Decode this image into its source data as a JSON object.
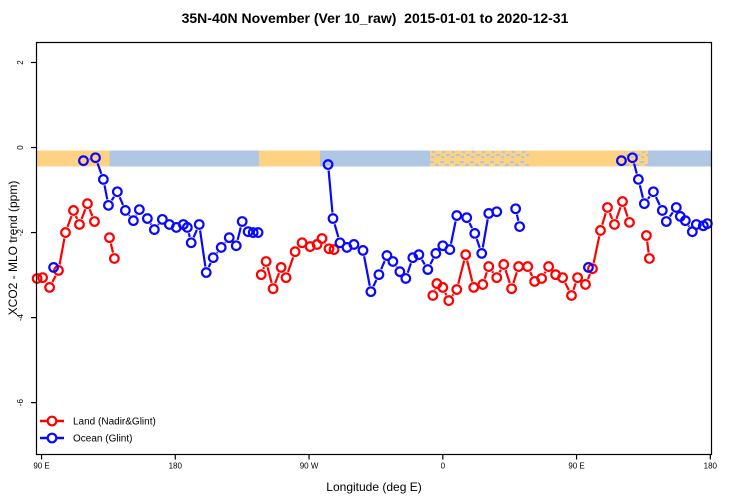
{
  "title": "35N-40N November (Ver 10_raw)  2015-01-01 to 2020-12-31",
  "colors": {
    "land": "#ff0000",
    "ocean": "#0808ff",
    "band_land": "#fdd383",
    "band_ocean": "#afc7e3",
    "axis": "#000000",
    "background": "#ffffff"
  },
  "chart_data": {
    "type": "line",
    "title": "35N-40N November (Ver 10_raw)  2015-01-01 to 2020-12-31",
    "xlabel": "Longitude (deg E)",
    "ylabel": "XCO2 - MLO trend (ppm)",
    "x_axis_note": "axis position in degrees east of 90E, wrapping through 180/-180; span 0..450",
    "xlim": [
      -3.4,
      450.8
    ],
    "ylim": [
      -7.22,
      2.47
    ],
    "x_ticks": [
      {
        "pos": 0,
        "label": "90 E"
      },
      {
        "pos": 90,
        "label": "180"
      },
      {
        "pos": 180,
        "label": "90 W"
      },
      {
        "pos": 270,
        "label": "0"
      },
      {
        "pos": 360,
        "label": "90 E"
      },
      {
        "pos": 450,
        "label": "180"
      }
    ],
    "y_ticks": [
      {
        "value": 2,
        "label": "2"
      },
      {
        "value": 0,
        "label": "0"
      },
      {
        "value": -2,
        "label": "-2"
      },
      {
        "value": -4,
        "label": "-4"
      },
      {
        "value": -6,
        "label": "-6"
      }
    ],
    "legend": [
      {
        "series": "land",
        "label": "Land (Nadir&Glint)"
      },
      {
        "series": "ocean",
        "label": "Ocean (Glint)"
      }
    ],
    "surface_band": {
      "value_top": -0.07,
      "value_bottom": -0.45,
      "segments": [
        {
          "from": -3.4,
          "to": 45.7,
          "surface": "land"
        },
        {
          "from": 45.7,
          "to": 146.4,
          "surface": "ocean"
        },
        {
          "from": 146.4,
          "to": 187.4,
          "surface": "land"
        },
        {
          "from": 187.4,
          "to": 261.3,
          "surface": "ocean"
        },
        {
          "from": 261.3,
          "to": 328.4,
          "surface": "mixed"
        },
        {
          "from": 328.4,
          "to": 392.0,
          "surface": "land"
        },
        {
          "from": 392.0,
          "to": 408.0,
          "surface": "mixed"
        },
        {
          "from": 408.0,
          "to": 450.8,
          "surface": "ocean"
        }
      ]
    },
    "series": [
      {
        "key": "land",
        "name": "Land (Nadir&Glint)",
        "segments": [
          [
            [
              -3.0,
              -3.08
            ],
            [
              0.7,
              -3.06
            ],
            [
              5.4,
              -3.29
            ],
            [
              11.4,
              -2.89
            ],
            [
              16.1,
              -2.0
            ],
            [
              21.5,
              -1.48
            ],
            [
              25.5,
              -1.81
            ],
            [
              30.9,
              -1.32
            ],
            [
              35.6,
              -1.74
            ]
          ],
          [
            [
              45.7,
              -2.12
            ],
            [
              49.0,
              -2.61
            ]
          ],
          [
            [
              147.8,
              -2.99
            ],
            [
              151.1,
              -2.68
            ],
            [
              155.8,
              -3.32
            ],
            [
              161.2,
              -2.82
            ],
            [
              164.5,
              -3.06
            ],
            [
              170.6,
              -2.45
            ],
            [
              175.3,
              -2.24
            ],
            [
              180.7,
              -2.33
            ],
            [
              185.4,
              -2.28
            ],
            [
              188.7,
              -2.14
            ],
            [
              193.4,
              -2.38
            ],
            [
              196.8,
              -2.4
            ]
          ],
          [
            [
              263.3,
              -3.48
            ],
            [
              266.0,
              -3.2
            ],
            [
              270.0,
              -3.29
            ],
            [
              274.0,
              -3.6
            ],
            [
              279.4,
              -3.34
            ],
            [
              285.4,
              -2.52
            ],
            [
              290.8,
              -3.29
            ],
            [
              296.9,
              -3.22
            ],
            [
              300.9,
              -2.8
            ],
            [
              306.3,
              -3.06
            ],
            [
              311.0,
              -2.75
            ],
            [
              316.3,
              -3.32
            ],
            [
              321.0,
              -2.8
            ],
            [
              327.1,
              -2.8
            ],
            [
              331.8,
              -3.15
            ],
            [
              336.5,
              -3.08
            ],
            [
              341.2,
              -2.8
            ],
            [
              345.9,
              -2.99
            ],
            [
              350.6,
              -3.06
            ],
            [
              356.6,
              -3.48
            ],
            [
              360.7,
              -3.06
            ],
            [
              366.0,
              -3.22
            ],
            [
              370.7,
              -2.85
            ],
            [
              376.1,
              -1.95
            ],
            [
              380.8,
              -1.41
            ],
            [
              385.5,
              -1.81
            ],
            [
              390.9,
              -1.27
            ],
            [
              395.6,
              -1.76
            ]
          ],
          [
            [
              407.0,
              -2.07
            ],
            [
              409.0,
              -2.61
            ]
          ]
        ]
      },
      {
        "key": "ocean",
        "name": "Ocean (Glint)",
        "segments": [
          [
            [
              8.1,
              -2.82
            ]
          ],
          [
            [
              28.2,
              -0.31
            ],
            [
              36.3,
              -0.24
            ],
            [
              41.6,
              -0.75
            ],
            [
              45.0,
              -1.36
            ],
            [
              51.0,
              -1.04
            ],
            [
              56.4,
              -1.48
            ],
            [
              61.8,
              -1.72
            ],
            [
              65.8,
              -1.46
            ],
            [
              71.2,
              -1.67
            ],
            [
              75.9,
              -1.93
            ],
            [
              81.3,
              -1.69
            ],
            [
              86.0,
              -1.81
            ],
            [
              90.7,
              -1.88
            ],
            [
              95.4,
              -1.81
            ],
            [
              98.1,
              -1.88
            ],
            [
              100.7,
              -2.24
            ],
            [
              106.1,
              -1.81
            ],
            [
              110.8,
              -2.94
            ],
            [
              115.5,
              -2.59
            ],
            [
              120.9,
              -2.35
            ],
            [
              126.3,
              -2.12
            ],
            [
              131.0,
              -2.31
            ],
            [
              135.0,
              -1.74
            ],
            [
              139.0,
              -1.98
            ],
            [
              142.4,
              -2.0
            ],
            [
              145.7,
              -2.0
            ]
          ],
          [
            [
              192.8,
              -0.4
            ],
            [
              196.1,
              -1.67
            ],
            [
              200.8,
              -2.24
            ],
            [
              205.5,
              -2.35
            ],
            [
              210.2,
              -2.28
            ],
            [
              216.3,
              -2.42
            ],
            [
              221.6,
              -3.39
            ],
            [
              227.0,
              -2.99
            ],
            [
              232.4,
              -2.54
            ],
            [
              236.4,
              -2.68
            ],
            [
              241.1,
              -2.92
            ],
            [
              245.1,
              -3.08
            ],
            [
              249.8,
              -2.59
            ],
            [
              253.9,
              -2.52
            ],
            [
              259.9,
              -2.87
            ],
            [
              265.3,
              -2.49
            ],
            [
              270.0,
              -2.31
            ],
            [
              274.7,
              -2.4
            ],
            [
              279.4,
              -1.6
            ],
            [
              286.1,
              -1.65
            ],
            [
              291.5,
              -2.02
            ],
            [
              296.2,
              -2.49
            ],
            [
              300.9,
              -1.55
            ],
            [
              306.3,
              -1.51
            ]
          ],
          [
            [
              319.0,
              -1.44
            ],
            [
              321.7,
              -1.86
            ]
          ],
          [
            [
              368.0,
              -2.82
            ]
          ],
          [
            [
              390.2,
              -0.31
            ],
            [
              397.6,
              -0.24
            ],
            [
              401.6,
              -0.75
            ],
            [
              405.6,
              -1.32
            ],
            [
              411.7,
              -1.04
            ],
            [
              417.7,
              -1.48
            ],
            [
              420.4,
              -1.74
            ],
            [
              427.1,
              -1.41
            ],
            [
              429.8,
              -1.62
            ],
            [
              433.2,
              -1.72
            ],
            [
              437.9,
              -1.98
            ],
            [
              440.6,
              -1.81
            ],
            [
              445.3,
              -1.84
            ],
            [
              448.0,
              -1.79
            ]
          ]
        ]
      }
    ]
  }
}
